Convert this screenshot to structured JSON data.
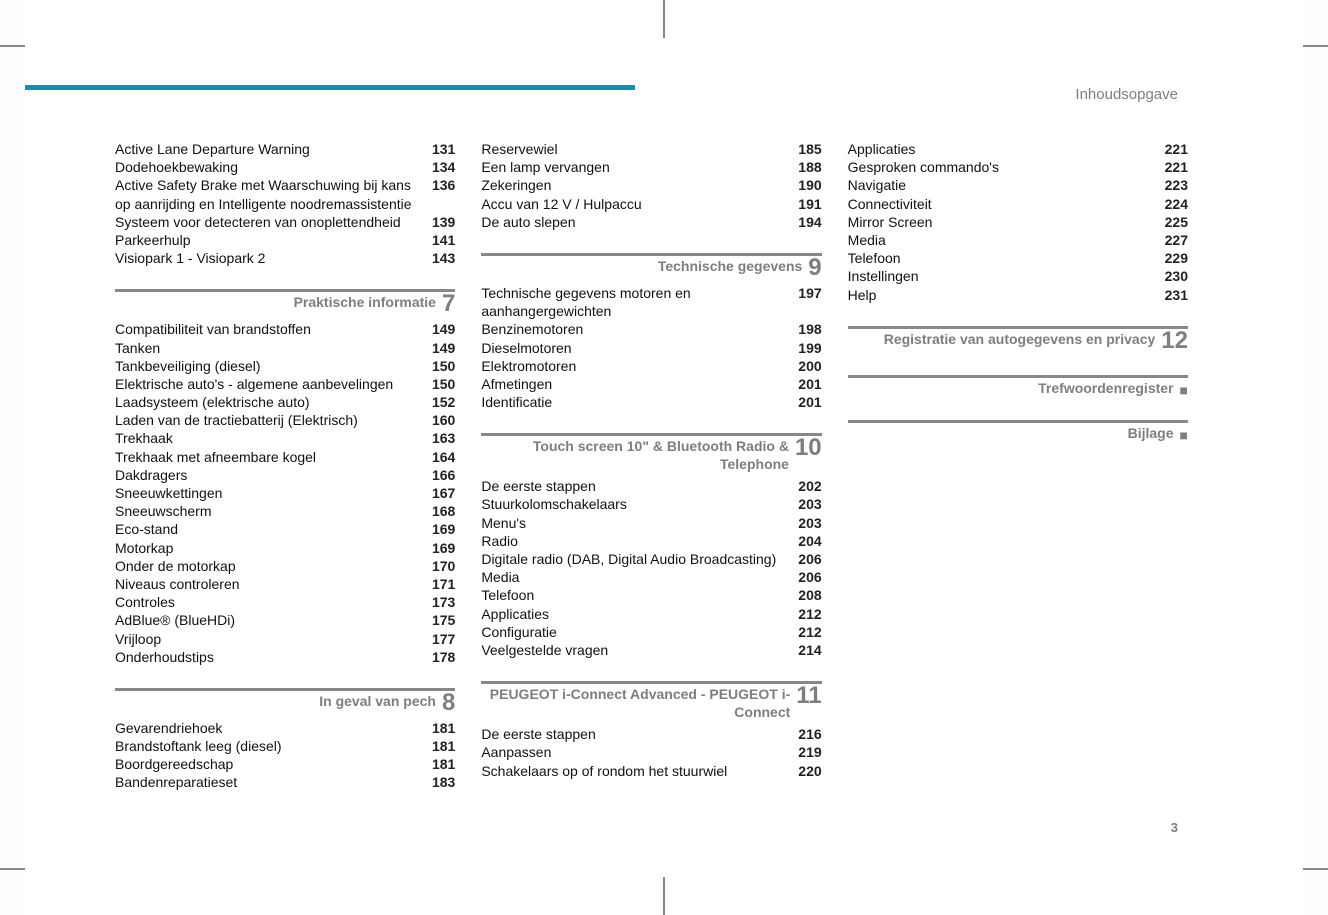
{
  "header": "Inhoudsopgave",
  "page_number": "3",
  "columns": [
    [
      {
        "kind": "entries",
        "items": [
          {
            "label": "Active Lane Departure Warning",
            "page": "131"
          },
          {
            "label": "Dodehoekbewaking",
            "page": "134"
          },
          {
            "label": "Active Safety Brake met Waarschuwing bij kans op aanrijding en Intelligente noodremassistentie",
            "page": "136"
          },
          {
            "label": "Systeem voor detecteren van onoplettendheid",
            "page": "139"
          },
          {
            "label": "Parkeerhulp",
            "page": "141"
          },
          {
            "label": "Visiopark 1 - Visiopark 2",
            "page": "143"
          }
        ]
      },
      {
        "kind": "section",
        "title": "Praktische informatie",
        "num": "7",
        "items": [
          {
            "label": "Compatibiliteit van brandstoffen",
            "page": "149"
          },
          {
            "label": "Tanken",
            "page": "149"
          },
          {
            "label": "Tankbeveiliging (diesel)",
            "page": "150"
          },
          {
            "label": "Elektrische auto's - algemene aanbevelingen",
            "page": "150"
          },
          {
            "label": "Laadsysteem (elektrische auto)",
            "page": "152"
          },
          {
            "label": "Laden van de tractiebatterij (Elektrisch)",
            "page": "160"
          },
          {
            "label": "Trekhaak",
            "page": "163"
          },
          {
            "label": "Trekhaak met afneembare kogel",
            "page": "164"
          },
          {
            "label": "Dakdragers",
            "page": "166"
          },
          {
            "label": "Sneeuwkettingen",
            "page": "167"
          },
          {
            "label": "Sneeuwscherm",
            "page": "168"
          },
          {
            "label": "Eco-stand",
            "page": "169"
          },
          {
            "label": "Motorkap",
            "page": "169"
          },
          {
            "label": "Onder de motorkap",
            "page": "170"
          },
          {
            "label": "Niveaus controleren",
            "page": "171"
          },
          {
            "label": "Controles",
            "page": "173"
          },
          {
            "label": "AdBlue® (BlueHDi)",
            "page": "175"
          },
          {
            "label": "Vrijloop",
            "page": "177"
          },
          {
            "label": "Onderhoudstips",
            "page": "178"
          }
        ]
      },
      {
        "kind": "section",
        "title": "In geval van pech",
        "num": "8",
        "items": [
          {
            "label": "Gevarendriehoek",
            "page": "181"
          },
          {
            "label": "Brandstoftank leeg (diesel)",
            "page": "181"
          },
          {
            "label": "Boordgereedschap",
            "page": "181"
          },
          {
            "label": "Bandenreparatieset",
            "page": "183"
          }
        ]
      }
    ],
    [
      {
        "kind": "entries",
        "items": [
          {
            "label": "Reservewiel",
            "page": "185"
          },
          {
            "label": "Een lamp vervangen",
            "page": "188"
          },
          {
            "label": "Zekeringen",
            "page": "190"
          },
          {
            "label": "Accu van 12 V / Hulpaccu",
            "page": "191"
          },
          {
            "label": "De auto slepen",
            "page": "194"
          }
        ]
      },
      {
        "kind": "section",
        "title": "Technische gegevens",
        "num": "9",
        "items": [
          {
            "label": "Technische gegevens motoren en aanhangergewichten",
            "page": "197"
          },
          {
            "label": "Benzinemotoren",
            "page": "198"
          },
          {
            "label": "Dieselmotoren",
            "page": "199"
          },
          {
            "label": "Elektromotoren",
            "page": "200"
          },
          {
            "label": "Afmetingen",
            "page": "201"
          },
          {
            "label": "Identificatie",
            "page": "201"
          }
        ]
      },
      {
        "kind": "section",
        "title": "Touch screen 10\" & Bluetooth Radio & Telephone",
        "num": "10",
        "items": [
          {
            "label": "De eerste stappen",
            "page": "202"
          },
          {
            "label": "Stuurkolomschakelaars",
            "page": "203"
          },
          {
            "label": "Menu's",
            "page": "203"
          },
          {
            "label": "Radio",
            "page": "204"
          },
          {
            "label": "Digitale radio (DAB, Digital Audio Broadcasting)",
            "page": "206"
          },
          {
            "label": "Media",
            "page": "206"
          },
          {
            "label": "Telefoon",
            "page": "208"
          },
          {
            "label": "Applicaties",
            "page": "212"
          },
          {
            "label": "Configuratie",
            "page": "212"
          },
          {
            "label": "Veelgestelde vragen",
            "page": "214"
          }
        ]
      },
      {
        "kind": "section",
        "title": "PEUGEOT i-Connect Advanced - PEUGEOT i-Connect",
        "num": "11",
        "items": [
          {
            "label": "De eerste stappen",
            "page": "216"
          },
          {
            "label": "Aanpassen",
            "page": "219"
          },
          {
            "label": "Schakelaars op of rondom het stuurwiel",
            "page": "220"
          }
        ]
      }
    ],
    [
      {
        "kind": "entries",
        "items": [
          {
            "label": "Applicaties",
            "page": "221"
          },
          {
            "label": "Gesproken commando's",
            "page": "221"
          },
          {
            "label": "Navigatie",
            "page": "223"
          },
          {
            "label": "Connectiviteit",
            "page": "224"
          },
          {
            "label": "Mirror Screen",
            "page": "225"
          },
          {
            "label": "Media",
            "page": "227"
          },
          {
            "label": "Telefoon",
            "page": "229"
          },
          {
            "label": "Instellingen",
            "page": "230"
          },
          {
            "label": "Help",
            "page": "231"
          }
        ]
      },
      {
        "kind": "section",
        "title": "Registratie van autogegevens en privacy",
        "num": "12",
        "items": []
      },
      {
        "kind": "section",
        "title": "Trefwoordenregister",
        "num": "■",
        "items": [],
        "dot": true
      },
      {
        "kind": "section",
        "title": "Bijlage",
        "num": "■",
        "items": [],
        "dot": true
      }
    ]
  ]
}
